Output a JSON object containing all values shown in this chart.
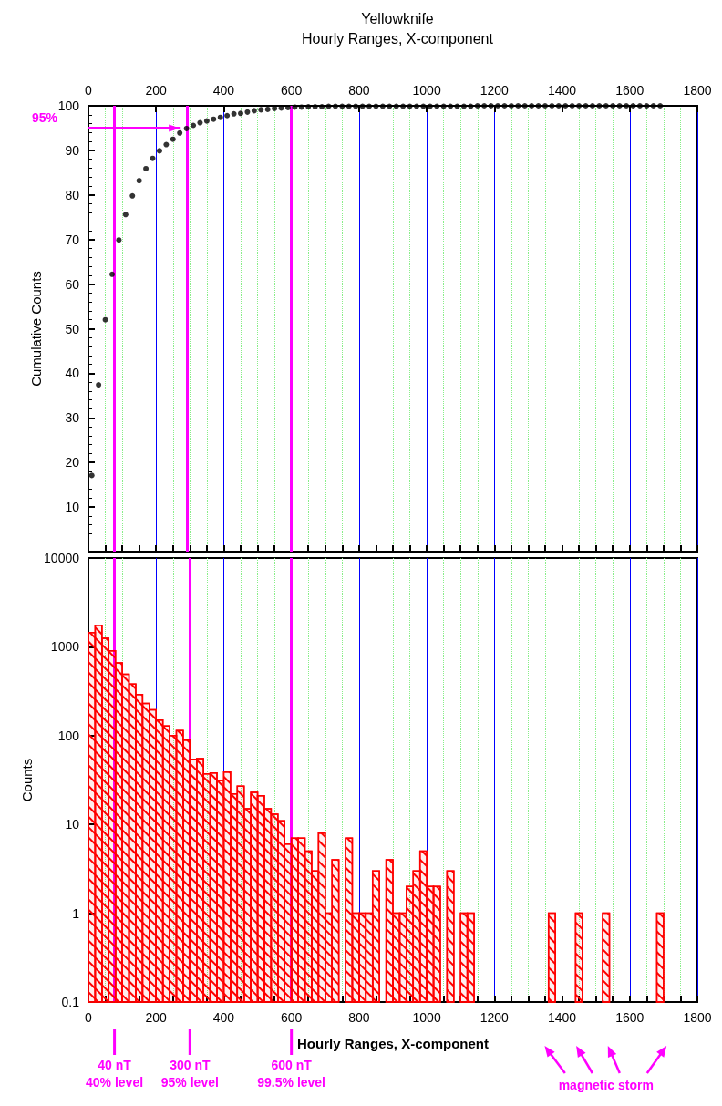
{
  "chart_data": [
    {
      "type": "scatter",
      "title": "Yellowknife\nHourly Ranges, X-component",
      "ylabel": "Cumulative Counts",
      "tick_labels": "y",
      "xlim": [
        0,
        1800
      ],
      "xticks": [
        {
          "value": 0,
          "label": null
        },
        {
          "value": 50,
          "label": null
        },
        {
          "value": 100,
          "label": null
        },
        {
          "value": 150,
          "label": null
        },
        {
          "value": 200,
          "label": null
        },
        {
          "value": 250,
          "label": null
        },
        {
          "value": 300,
          "label": null
        },
        {
          "value": 350,
          "label": null
        },
        {
          "value": 400,
          "label": null
        },
        {
          "value": 450,
          "label": null
        },
        {
          "value": 500,
          "label": null
        },
        {
          "value": 550,
          "label": null
        },
        {
          "value": 600,
          "label": null
        },
        {
          "value": 650,
          "label": null
        },
        {
          "value": 700,
          "label": null
        },
        {
          "value": 750,
          "label": null
        },
        {
          "value": 800,
          "label": null
        },
        {
          "value": 850,
          "label": null
        },
        {
          "value": 900,
          "label": null
        },
        {
          "value": 950,
          "label": null
        },
        {
          "value": 1000,
          "label": null
        },
        {
          "value": 1050,
          "label": null
        },
        {
          "value": 1100,
          "label": null
        },
        {
          "value": 1150,
          "label": null
        },
        {
          "value": 1200,
          "label": null
        },
        {
          "value": 1250,
          "label": null
        },
        {
          "value": 1300,
          "label": null
        },
        {
          "value": 1350,
          "label": null
        },
        {
          "value": 1400,
          "label": null
        },
        {
          "value": 1450,
          "label": null
        },
        {
          "value": 1500,
          "label": null
        },
        {
          "value": 1550,
          "label": null
        },
        {
          "value": 1600,
          "label": null
        },
        {
          "value": 1650,
          "label": null
        },
        {
          "value": 1700,
          "label": null
        },
        {
          "value": 1750,
          "label": null
        },
        {
          "value": 1800,
          "label": null
        }
      ],
      "x2lim": [
        0,
        1800
      ],
      "x2ticks": [
        0,
        200,
        400,
        600,
        800,
        1000,
        1200,
        1400,
        1600,
        1800
      ],
      "ylim": [
        0,
        100
      ],
      "yticks": [
        10,
        20,
        30,
        40,
        50,
        60,
        70,
        80,
        90,
        100
      ],
      "grid": "x",
      "marker": "circle",
      "color": "#000000",
      "x": [
        10,
        30,
        50,
        70,
        90,
        110,
        130,
        150,
        170,
        190,
        210,
        230,
        250,
        270,
        290,
        310,
        330,
        350,
        370,
        390,
        410,
        430,
        450,
        470,
        490,
        510,
        530,
        550,
        570,
        590,
        610,
        630,
        650,
        670,
        690,
        710,
        730,
        750,
        770,
        790,
        810,
        830,
        850,
        870,
        890,
        910,
        930,
        950,
        970,
        990,
        1010,
        1030,
        1050,
        1070,
        1090,
        1110,
        1130,
        1150,
        1170,
        1190,
        1210,
        1230,
        1250,
        1270,
        1290,
        1310,
        1330,
        1350,
        1370,
        1390,
        1410,
        1430,
        1450,
        1470,
        1490,
        1510,
        1530,
        1550,
        1570,
        1590,
        1610,
        1630,
        1650,
        1670,
        1690
      ],
      "values": [
        17.1,
        37.4,
        52.0,
        62.2,
        69.9,
        75.6,
        79.8,
        83.2,
        85.9,
        88.2,
        89.9,
        91.3,
        92.5,
        93.9,
        94.9,
        95.6,
        96.2,
        96.6,
        97.0,
        97.4,
        97.8,
        98.2,
        98.3,
        98.6,
        98.9,
        99.1,
        99.2,
        99.4,
        99.5,
        99.6,
        99.7,
        99.7,
        99.8,
        99.8,
        99.8,
        99.9,
        99.9,
        99.9,
        99.9,
        99.9,
        99.9,
        99.9,
        99.9,
        99.9,
        99.9,
        99.9,
        99.9,
        99.9,
        99.9,
        99.9,
        99.9,
        99.9,
        99.9,
        99.9,
        99.9,
        99.9,
        99.9,
        100,
        100,
        100,
        100,
        100,
        100,
        100,
        100,
        100,
        100,
        100,
        100,
        100,
        100,
        100,
        100,
        100,
        100,
        100,
        100,
        100,
        100,
        100,
        100,
        100,
        100,
        100,
        100
      ],
      "ref_lines": [
        {
          "axis": "x",
          "value": 77,
          "color": "#ff00ff"
        },
        {
          "axis": "x",
          "value": 292,
          "color": "#ff00ff"
        },
        {
          "axis": "x",
          "value": 600,
          "color": "#ff00ff"
        },
        {
          "axis": "y",
          "value": 95,
          "label": "95%",
          "color": "#ff00ff"
        }
      ]
    },
    {
      "type": "histogram",
      "xlabel": "Hourly Ranges, X-component",
      "ylabel": "Counts",
      "xlim": [
        0,
        1800
      ],
      "xticks": [
        0,
        {
          "value": 50,
          "label": null
        },
        {
          "value": 100,
          "label": null
        },
        {
          "value": 150,
          "label": null
        },
        200,
        {
          "value": 250,
          "label": null
        },
        {
          "value": 300,
          "label": null
        },
        {
          "value": 350,
          "label": null
        },
        400,
        {
          "value": 450,
          "label": null
        },
        {
          "value": 500,
          "label": null
        },
        {
          "value": 550,
          "label": null
        },
        600,
        {
          "value": 650,
          "label": null
        },
        {
          "value": 700,
          "label": null
        },
        {
          "value": 750,
          "label": null
        },
        800,
        {
          "value": 850,
          "label": null
        },
        {
          "value": 900,
          "label": null
        },
        {
          "value": 950,
          "label": null
        },
        1000,
        {
          "value": 1050,
          "label": null
        },
        {
          "value": 1100,
          "label": null
        },
        {
          "value": 1150,
          "label": null
        },
        1200,
        {
          "value": 1250,
          "label": null
        },
        {
          "value": 1300,
          "label": null
        },
        {
          "value": 1350,
          "label": null
        },
        1400,
        {
          "value": 1450,
          "label": null
        },
        {
          "value": 1500,
          "label": null
        },
        {
          "value": 1550,
          "label": null
        },
        1600,
        {
          "value": 1650,
          "label": null
        },
        {
          "value": 1700,
          "label": null
        },
        {
          "value": 1750,
          "label": null
        },
        1800
      ],
      "ylim": [
        0.1,
        10000
      ],
      "yticks": [
        0.1,
        1,
        10,
        100,
        1000,
        10000
      ],
      "log": true,
      "grid": "x",
      "color": "#ff0000",
      "bins": [
        0,
        20,
        40,
        60,
        80,
        100,
        120,
        140,
        160,
        180,
        200,
        220,
        240,
        260,
        280,
        300,
        320,
        340,
        360,
        380,
        400,
        420,
        440,
        460,
        480,
        500,
        520,
        540,
        560,
        580,
        600,
        620,
        640,
        660,
        680,
        700,
        720,
        740,
        760,
        780,
        800,
        820,
        840,
        860,
        880,
        900,
        920,
        940,
        960,
        980,
        1000,
        1020,
        1040,
        1060,
        1080,
        1100,
        1120,
        1140,
        1160,
        1180,
        1200,
        1220,
        1240,
        1260,
        1280,
        1300,
        1320,
        1340,
        1360,
        1380,
        1400,
        1420,
        1440,
        1460,
        1480,
        1500,
        1520,
        1540,
        1560,
        1580,
        1600,
        1620,
        1640,
        1660,
        1680,
        1700
      ],
      "values": [
        1450,
        1750,
        1250,
        900,
        660,
        490,
        380,
        290,
        230,
        195,
        150,
        128,
        100,
        114,
        89,
        54,
        55,
        37,
        38,
        31,
        39,
        22,
        27,
        15,
        23,
        21,
        15,
        13,
        11,
        6,
        7,
        7,
        5,
        3,
        8,
        1,
        4,
        null,
        7,
        1,
        1,
        1,
        3,
        null,
        4,
        1,
        1,
        2,
        3,
        5,
        2,
        2,
        null,
        3,
        null,
        1,
        1,
        null,
        null,
        null,
        null,
        null,
        null,
        null,
        null,
        null,
        null,
        null,
        1,
        null,
        null,
        null,
        1,
        null,
        null,
        null,
        1,
        null,
        null,
        null,
        null,
        null,
        null,
        null,
        1
      ],
      "ref_lines": [
        {
          "axis": "x",
          "value": 77,
          "label": "40 nT\n40% level",
          "color": "#ff00ff"
        },
        {
          "axis": "x",
          "value": 300,
          "label": "300 nT\n95% level",
          "color": "#ff00ff"
        },
        {
          "axis": "x",
          "value": 600,
          "label": "600 nT\n99.5% level",
          "color": "#ff00ff"
        }
      ],
      "annotations": [
        "magnetic storm"
      ]
    }
  ]
}
